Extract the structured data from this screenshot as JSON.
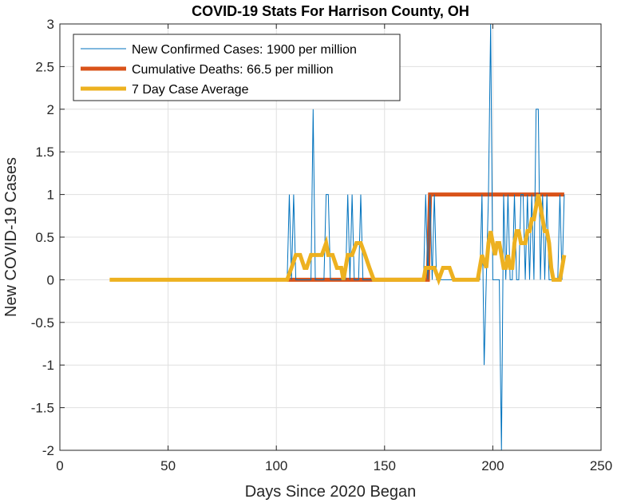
{
  "chart_data": {
    "type": "line",
    "title": "COVID-19 Stats For Harrison County, OH",
    "xlabel": "Days Since 2020 Began",
    "ylabel": "New COVID-19 Cases",
    "xlim": [
      0,
      250
    ],
    "ylim": [
      -2,
      3
    ],
    "xticks": [
      0,
      50,
      100,
      150,
      200,
      250
    ],
    "yticks": [
      -2,
      -1.5,
      -1,
      -0.5,
      0,
      0.5,
      1,
      1.5,
      2,
      2.5,
      3
    ],
    "xtick_labels": [
      "0",
      "50",
      "100",
      "150",
      "200",
      "250"
    ],
    "ytick_labels": [
      "-2",
      "-1.5",
      "-1",
      "-0.5",
      "0",
      "0.5",
      "1",
      "1.5",
      "2",
      "2.5",
      "3"
    ],
    "grid": true,
    "legend_position": "top-left",
    "series": [
      {
        "name": "New Confirmed Cases: 1900 per million",
        "color": "#0072BD",
        "line_width": "thin",
        "x": [
          105,
          106,
          107,
          108,
          109,
          116,
          117,
          118,
          122,
          123,
          124,
          125,
          132,
          133,
          134,
          135,
          136,
          138,
          139,
          140,
          141,
          168,
          169,
          170,
          171,
          172,
          173,
          174,
          175,
          194,
          195,
          196,
          197,
          198,
          199,
          200,
          201,
          202,
          203,
          204,
          205,
          206,
          207,
          208,
          209,
          210,
          211,
          212,
          213,
          214,
          215,
          216,
          217,
          218,
          219,
          220,
          221,
          222,
          223,
          224,
          225,
          226,
          227,
          228,
          229,
          230,
          231,
          232,
          233
        ],
        "y": [
          0,
          1,
          0,
          1,
          0,
          0,
          2,
          0,
          0,
          1,
          1,
          0,
          0,
          1,
          0,
          1,
          0,
          0,
          1,
          0,
          0,
          0,
          1,
          0,
          1,
          0,
          1,
          0,
          0,
          0,
          1,
          -1,
          0,
          1,
          3,
          0,
          0,
          0,
          0,
          -2,
          1,
          0,
          1,
          0,
          0,
          1,
          0,
          0,
          1,
          1,
          0,
          1,
          0,
          1,
          0,
          2,
          2,
          0,
          1,
          0,
          1,
          0,
          0,
          0,
          0,
          0,
          1,
          0,
          1
        ]
      },
      {
        "name": "Cumulative Deaths: 66.5 per million",
        "color": "#D95319",
        "line_width": "thick",
        "x": [
          105,
          170,
          171,
          172,
          233
        ],
        "y": [
          0,
          0,
          1,
          1,
          1
        ]
      },
      {
        "name": "7 Day Case Average",
        "color": "#EDB120",
        "line_width": "thick",
        "x": [
          23,
          105,
          107,
          109,
          111,
          113,
          114,
          116,
          118,
          121,
          123,
          124,
          126,
          128,
          130,
          131,
          133,
          135,
          137,
          139,
          141,
          143,
          145,
          148,
          168,
          169,
          171,
          173,
          175,
          177,
          178,
          180,
          182,
          193,
          195,
          197,
          198,
          199,
          200,
          201,
          202,
          203,
          204,
          205,
          206,
          207,
          208,
          209,
          210,
          211,
          212,
          213,
          214,
          215,
          216,
          217,
          218,
          219,
          220,
          221,
          222,
          223,
          224,
          225,
          226,
          227,
          228,
          229,
          230,
          231,
          232,
          233
        ],
        "y": [
          0,
          0,
          0.14,
          0.29,
          0.29,
          0.14,
          0.14,
          0.29,
          0.29,
          0.29,
          0.43,
          0.29,
          0.29,
          0.14,
          0.14,
          0,
          0.29,
          0.29,
          0.43,
          0.43,
          0.29,
          0.14,
          0,
          0,
          0,
          0.14,
          0.14,
          0.14,
          0,
          0.14,
          0.14,
          0.14,
          0,
          0,
          0.29,
          0.14,
          0.43,
          0.57,
          0.43,
          0.29,
          0.43,
          0.43,
          0.29,
          0.14,
          0.14,
          0.29,
          0.14,
          0.14,
          0.43,
          0.57,
          0.57,
          0.43,
          0.43,
          0.43,
          0.57,
          0.57,
          0.71,
          0.71,
          0.86,
          1,
          0.86,
          0.71,
          0.57,
          0.57,
          0.43,
          0.14,
          0,
          0,
          0,
          0,
          0.14,
          0.29
        ]
      }
    ]
  }
}
